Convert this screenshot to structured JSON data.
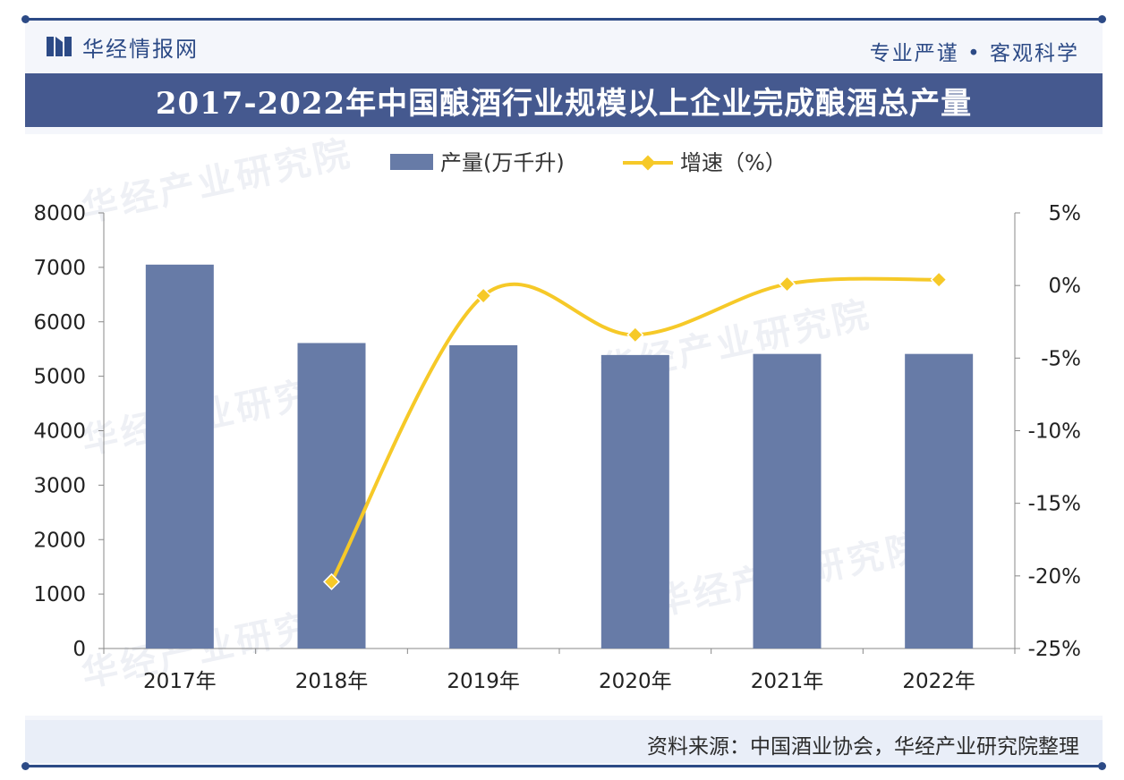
{
  "header": {
    "brand": "华经情报网",
    "slogan": "专业严谨 • 客观科学"
  },
  "title": "2017-2022年中国酿酒行业规模以上企业完成酿酒总产量",
  "footer": {
    "source": "资料来源：中国酒业协会，华经产业研究院整理"
  },
  "watermark": "华经产业研究院",
  "colors": {
    "bar": "#677ba7",
    "line": "#f6c928",
    "marker": "#f6c928",
    "title_bg": "#45598f",
    "accent": "#2c4a86"
  },
  "chart_data": {
    "type": "bar",
    "categories": [
      "2017年",
      "2018年",
      "2019年",
      "2020年",
      "2021年",
      "2022年"
    ],
    "series": [
      {
        "name": "产量(万千升)",
        "type": "bar",
        "axis": "left",
        "values": [
          7050,
          5610,
          5570,
          5390,
          5410,
          5410
        ]
      },
      {
        "name": "增速（%）",
        "type": "line",
        "axis": "right",
        "values": [
          null,
          -20.4,
          -0.7,
          -3.4,
          0.1,
          0.4
        ]
      }
    ],
    "y_left": {
      "min": 0,
      "max": 8000,
      "ticks": [
        0,
        1000,
        2000,
        3000,
        4000,
        5000,
        6000,
        7000,
        8000
      ]
    },
    "y_right": {
      "min": -25,
      "max": 5,
      "ticks": [
        "5%",
        "0%",
        "-5%",
        "-10%",
        "-15%",
        "-20%",
        "-25%"
      ]
    },
    "legend": "top-center"
  }
}
